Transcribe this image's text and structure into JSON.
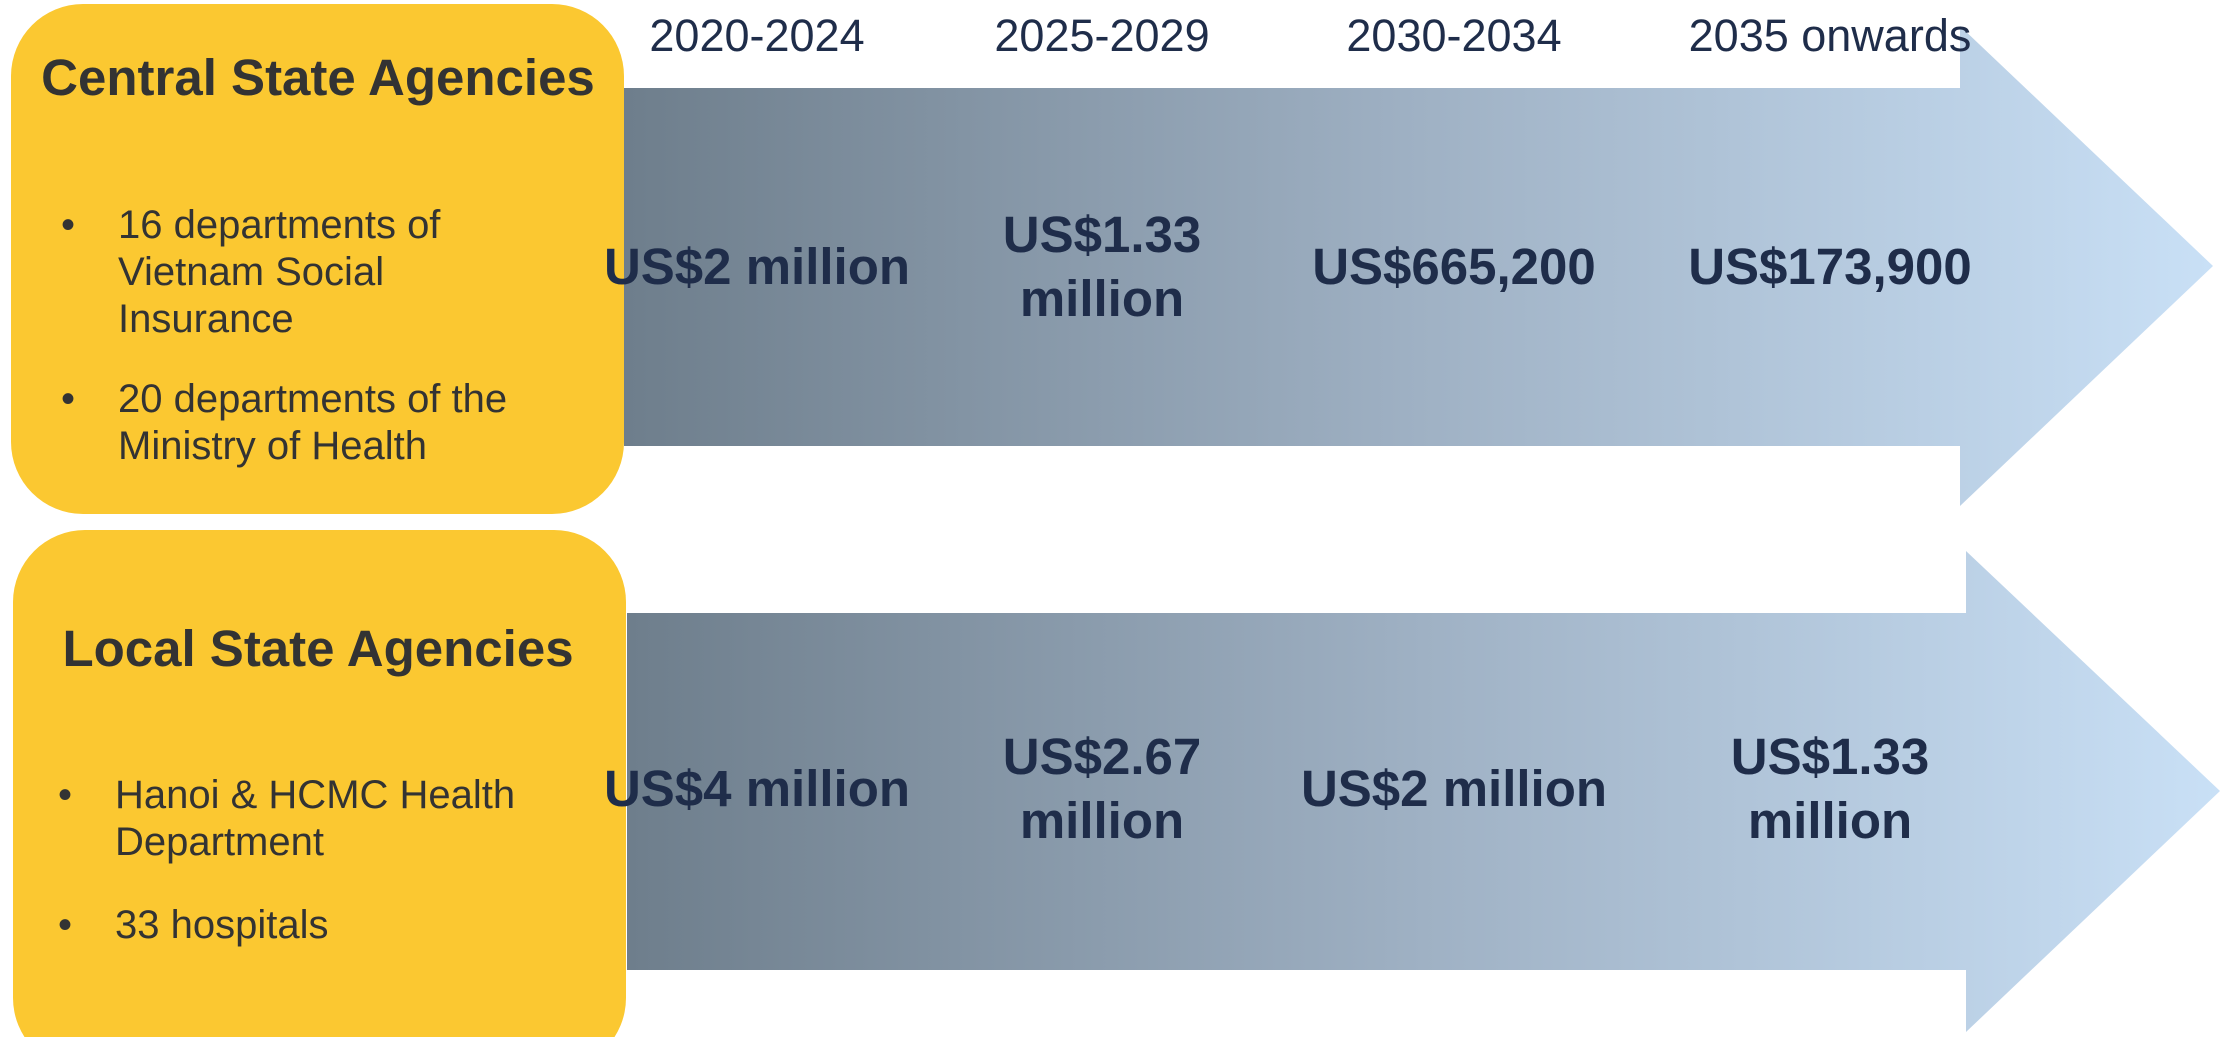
{
  "periods": [
    "2020-2024",
    "2025-2029",
    "2030-2034",
    "2035 onwards"
  ],
  "rows": [
    {
      "title": "Central State Agencies",
      "bullets": [
        "16 departments of Vietnam Social Insurance",
        "20 departments of the Ministry of Health"
      ],
      "amounts": [
        "US$2 million",
        "US$1.33 million",
        "US$665,200",
        "US$173,900"
      ]
    },
    {
      "title": "Local State Agencies",
      "bullets": [
        "Hanoi & HCMC Health Department",
        "33 hospitals"
      ],
      "amounts": [
        "US$4 million",
        "US$2.67 million",
        "US$2 million",
        "US$1.33 million"
      ]
    }
  ]
}
